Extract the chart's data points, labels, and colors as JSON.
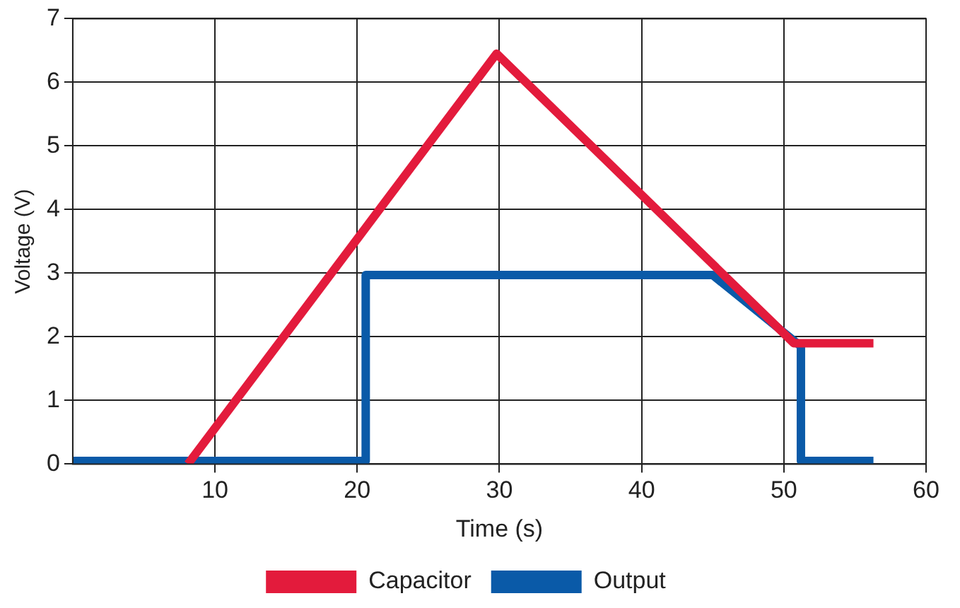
{
  "chart_data": {
    "type": "line",
    "xlabel": "Time (s)",
    "ylabel": "Voltage (V)",
    "xlim": [
      0,
      60
    ],
    "xticks": [
      10,
      20,
      30,
      40,
      50,
      60
    ],
    "ylim": [
      0,
      7
    ],
    "yticks": [
      0,
      1,
      2,
      3,
      4,
      5,
      6,
      7
    ],
    "grid": true,
    "legend": "bottom",
    "marker": "none",
    "line_style": "solid",
    "series": [
      {
        "name": "Capacitor",
        "color": "#e31b3c",
        "x": [
          8.1,
          29.8,
          50.7,
          56.3
        ],
        "values": [
          0,
          6.45,
          1.9,
          1.9
        ]
      },
      {
        "name": "Output",
        "color": "#0a5aa8",
        "x": [
          0,
          20.6,
          20.6,
          45,
          51.2,
          51.2,
          56.3
        ],
        "values": [
          0.05,
          0.05,
          2.97,
          2.97,
          1.85,
          0.05,
          0.05
        ]
      }
    ]
  }
}
